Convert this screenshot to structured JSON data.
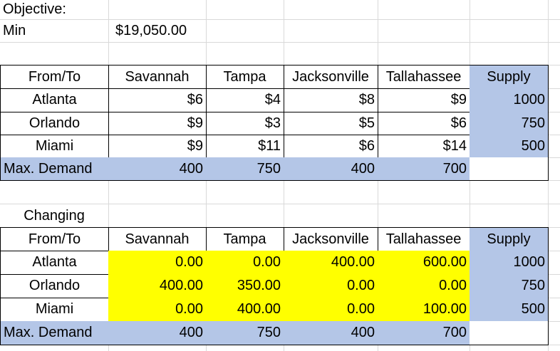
{
  "objective": {
    "label": "Objective:",
    "min_label": "Min",
    "min_value": "$19,050.00"
  },
  "cost_table": {
    "headers": [
      "From/To",
      "Savannah",
      "Tampa",
      "Jacksonville",
      "Tallahassee",
      "Supply"
    ],
    "rows": [
      {
        "from": "Atlanta",
        "values": [
          "$6",
          "$4",
          "$8",
          "$9"
        ],
        "supply": "1000"
      },
      {
        "from": "Orlando",
        "values": [
          "$9",
          "$3",
          "$5",
          "$6"
        ],
        "supply": "750"
      },
      {
        "from": "Miami",
        "values": [
          "$9",
          "$11",
          "$6",
          "$14"
        ],
        "supply": "500"
      }
    ],
    "demand": {
      "label": "Max. Demand",
      "values": [
        "400",
        "750",
        "400",
        "700"
      ]
    }
  },
  "changing_table": {
    "title": "Changing",
    "headers": [
      "From/To",
      "Savannah",
      "Tampa",
      "Jacksonville",
      "Tallahassee",
      "Supply"
    ],
    "rows": [
      {
        "from": "Atlanta",
        "values": [
          "0.00",
          "0.00",
          "400.00",
          "600.00"
        ],
        "supply": "1000"
      },
      {
        "from": "Orlando",
        "values": [
          "400.00",
          "350.00",
          "0.00",
          "0.00"
        ],
        "supply": "750"
      },
      {
        "from": "Miami",
        "values": [
          "0.00",
          "400.00",
          "0.00",
          "100.00"
        ],
        "supply": "500"
      }
    ],
    "demand": {
      "label": "Max. Demand",
      "values": [
        "400",
        "750",
        "400",
        "700"
      ]
    }
  },
  "colors": {
    "header_blue": "#b4c6e7",
    "changing_yellow": "#ffff00",
    "gridline": "#d9d9d9"
  }
}
